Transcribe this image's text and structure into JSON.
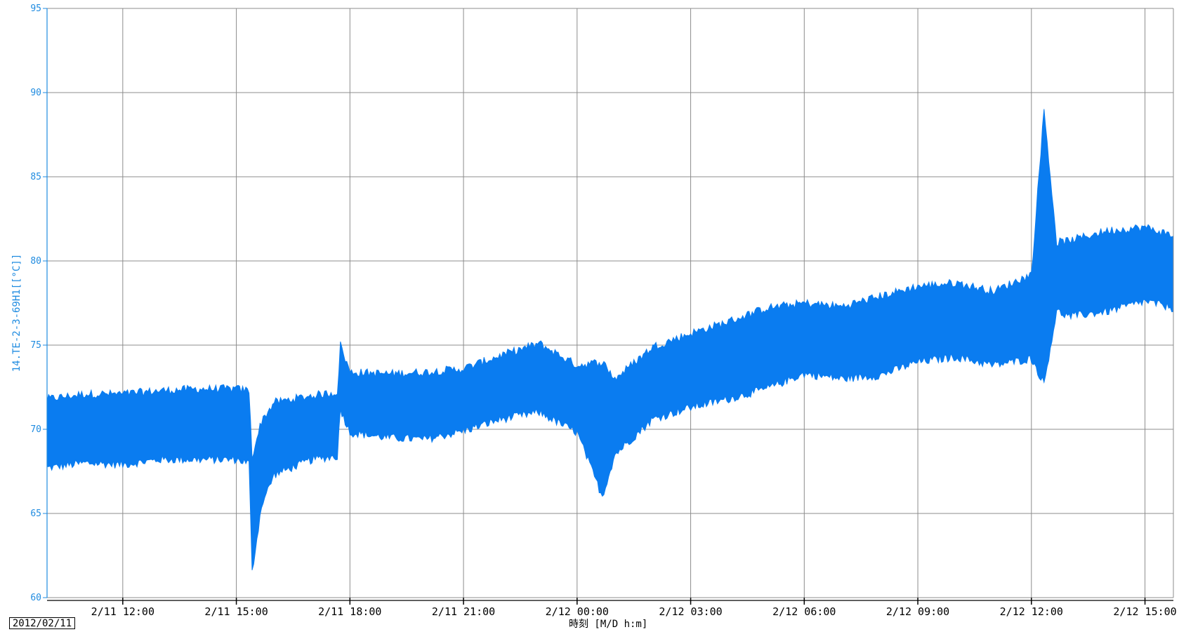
{
  "chart_data": {
    "type": "line",
    "ylabel": "14.TE-2-3-69H1[[°C]]",
    "xlabel": "時刻 [M/D h:m]",
    "start_date": "2012/02/11",
    "ylim": [
      60,
      95
    ],
    "yticks": [
      60,
      65,
      70,
      75,
      80,
      85,
      90,
      95
    ],
    "xlim": [
      "2/11 10:00",
      "2/12 15:45"
    ],
    "xticks": [
      "2/11 12:00",
      "2/11 15:00",
      "2/11 18:00",
      "2/11 21:00",
      "2/12 00:00",
      "2/12 03:00",
      "2/12 06:00",
      "2/12 09:00",
      "2/12 12:00",
      "2/12 15:00"
    ],
    "grid": true,
    "line_color": "#0a7cf0",
    "series": [
      {
        "name": "",
        "x": [
          "2/11 10:00",
          "2/11 11:00",
          "2/11 12:00",
          "2/11 13:00",
          "2/11 14:00",
          "2/11 15:00",
          "2/11 15:20",
          "2/11 15:25",
          "2/11 15:40",
          "2/11 16:00",
          "2/11 17:00",
          "2/11 17:40",
          "2/11 17:45",
          "2/11 18:00",
          "2/11 19:00",
          "2/11 20:00",
          "2/11 21:00",
          "2/11 22:00",
          "2/11 23:00",
          "2/12 00:00",
          "2/12 00:40",
          "2/12 01:00",
          "2/12 02:00",
          "2/12 03:00",
          "2/12 04:00",
          "2/12 05:00",
          "2/12 06:00",
          "2/12 07:00",
          "2/12 08:00",
          "2/12 09:00",
          "2/12 10:00",
          "2/12 11:00",
          "2/12 12:00",
          "2/12 12:20",
          "2/12 12:40",
          "2/12 13:00",
          "2/12 14:00",
          "2/12 15:00",
          "2/12 15:45"
        ],
        "y_min": [
          67.7,
          68.0,
          67.9,
          68.2,
          68.2,
          68.2,
          68.0,
          61.5,
          65.5,
          67.3,
          68.2,
          68.4,
          71.2,
          69.8,
          69.5,
          69.4,
          69.9,
          70.6,
          71.0,
          69.8,
          66.0,
          68.5,
          70.6,
          71.3,
          71.8,
          72.4,
          73.3,
          73.0,
          73.2,
          74.0,
          74.3,
          73.8,
          74.2,
          72.7,
          77.0,
          76.7,
          77.0,
          77.6,
          77.2
        ],
        "y_max": [
          71.8,
          72.1,
          72.1,
          72.3,
          72.4,
          72.4,
          72.3,
          68.4,
          70.5,
          71.6,
          72.0,
          72.2,
          75.0,
          73.4,
          73.3,
          73.4,
          73.6,
          74.4,
          75.1,
          73.8,
          74.0,
          73.0,
          74.9,
          75.7,
          76.4,
          77.2,
          77.5,
          77.3,
          77.9,
          78.5,
          78.7,
          78.2,
          79.2,
          89.0,
          81.1,
          81.2,
          81.8,
          82.0,
          81.5
        ]
      }
    ]
  }
}
